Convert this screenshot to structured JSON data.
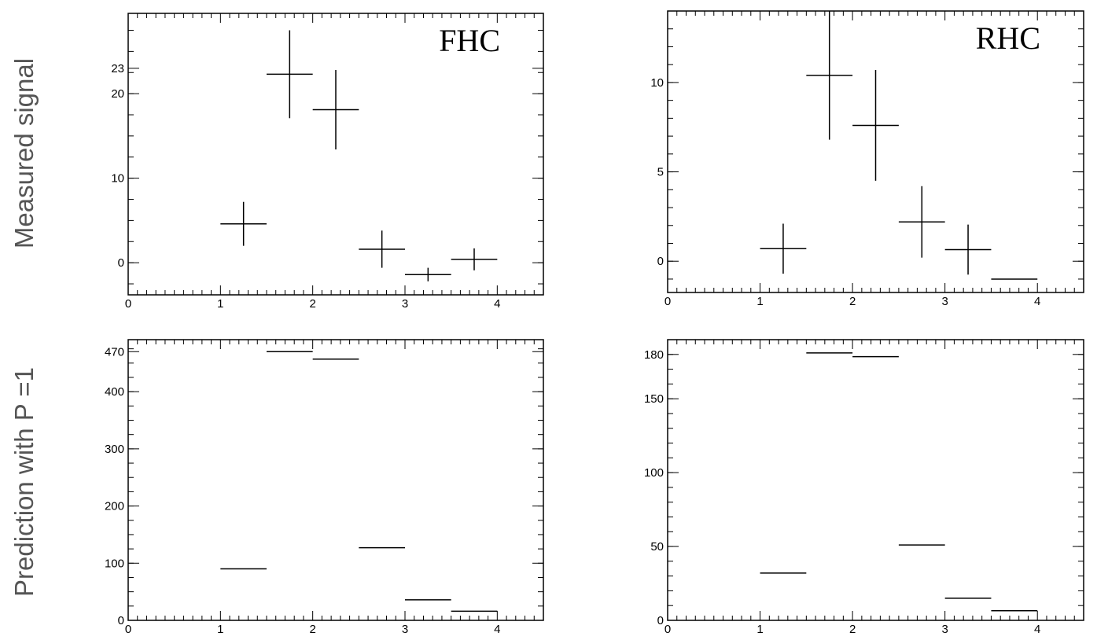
{
  "ylabels": {
    "top": "Measured signal",
    "bottom": "Prediction with P =1"
  },
  "chart_data": [
    {
      "id": "fhc-measured",
      "type": "scatter",
      "title": "FHC",
      "xlim": [
        0,
        4.5
      ],
      "ylim": [
        -3.8,
        29.5
      ],
      "xticks": [
        0,
        1,
        2,
        3,
        4
      ],
      "yticks": [
        0,
        10,
        20,
        23
      ],
      "x_halfwidth": 0.25,
      "points": [
        {
          "x": 1.25,
          "y": 4.6,
          "err": 2.6
        },
        {
          "x": 1.75,
          "y": 22.3,
          "err": 5.2
        },
        {
          "x": 2.25,
          "y": 18.1,
          "err": 4.7
        },
        {
          "x": 2.75,
          "y": 1.6,
          "err": 2.2
        },
        {
          "x": 3.25,
          "y": -1.4,
          "err": 0.8
        },
        {
          "x": 3.75,
          "y": 0.4,
          "err": 1.3
        }
      ]
    },
    {
      "id": "rhc-measured",
      "type": "scatter",
      "title": "RHC",
      "xlim": [
        0,
        4.5
      ],
      "ylim": [
        -1.75,
        14.0
      ],
      "xticks": [
        0,
        1,
        2,
        3,
        4
      ],
      "yticks": [
        0,
        5,
        10
      ],
      "x_halfwidth": 0.25,
      "points": [
        {
          "x": 1.25,
          "y": 0.7,
          "err": 1.4
        },
        {
          "x": 1.75,
          "y": 10.4,
          "err": 3.6
        },
        {
          "x": 2.25,
          "y": 7.6,
          "err": 3.1
        },
        {
          "x": 2.75,
          "y": 2.2,
          "err": 2.0
        },
        {
          "x": 3.25,
          "y": 0.65,
          "err": 1.4
        },
        {
          "x": 3.75,
          "y": -1.0,
          "err": 0.0
        }
      ]
    },
    {
      "id": "fhc-prediction",
      "type": "bar",
      "title": "",
      "xlim": [
        0,
        4.5
      ],
      "ylim": [
        0,
        491
      ],
      "xticks": [
        0,
        1,
        2,
        3,
        4
      ],
      "yticks": [
        0,
        100,
        200,
        300,
        400,
        470
      ],
      "bins": [
        {
          "x0": 1.0,
          "x1": 1.5,
          "y": 90
        },
        {
          "x0": 1.5,
          "x1": 2.0,
          "y": 470
        },
        {
          "x0": 2.0,
          "x1": 2.5,
          "y": 457
        },
        {
          "x0": 2.5,
          "x1": 3.0,
          "y": 127
        },
        {
          "x0": 3.0,
          "x1": 3.5,
          "y": 36
        },
        {
          "x0": 3.5,
          "x1": 4.0,
          "y": 16
        }
      ]
    },
    {
      "id": "rhc-prediction",
      "type": "bar",
      "title": "",
      "xlim": [
        0,
        4.5
      ],
      "ylim": [
        0,
        190
      ],
      "xticks": [
        0,
        1,
        2,
        3,
        4
      ],
      "yticks": [
        0,
        50,
        100,
        150,
        180
      ],
      "bins": [
        {
          "x0": 1.0,
          "x1": 1.5,
          "y": 32
        },
        {
          "x0": 1.5,
          "x1": 2.0,
          "y": 181
        },
        {
          "x0": 2.0,
          "x1": 2.5,
          "y": 178.5
        },
        {
          "x0": 2.5,
          "x1": 3.0,
          "y": 51
        },
        {
          "x0": 3.0,
          "x1": 3.5,
          "y": 15
        },
        {
          "x0": 3.5,
          "x1": 4.0,
          "y": 6.5
        }
      ]
    }
  ]
}
